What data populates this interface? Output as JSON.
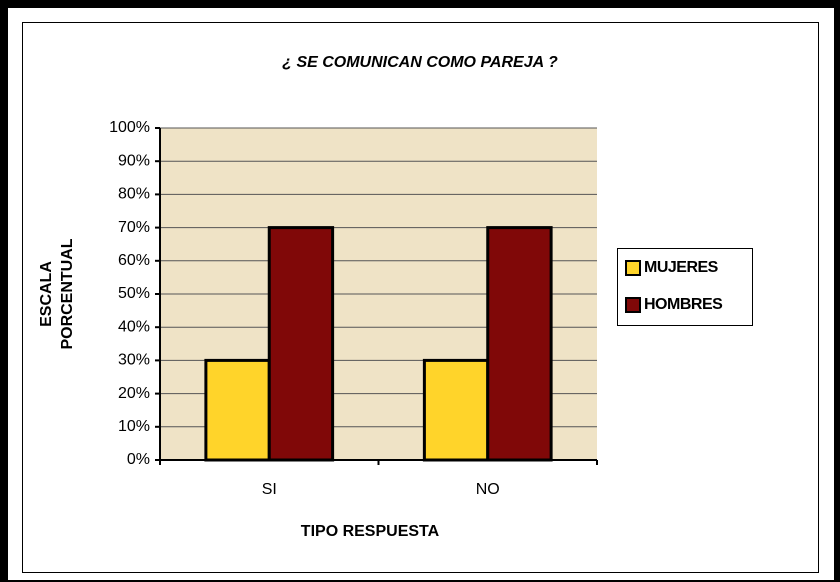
{
  "chart_data": {
    "type": "bar",
    "title": "¿ SE COMUNICAN COMO PAREJA ?",
    "xlabel": "TIPO RESPUESTA",
    "ylabel": [
      "ESCALA",
      "PORCENTUAL"
    ],
    "categories": [
      "SI",
      "NO"
    ],
    "series": [
      {
        "name": "MUJERES",
        "color": "#ffd42a",
        "values": [
          30,
          30
        ]
      },
      {
        "name": "HOMBRES",
        "color": "#800808",
        "values": [
          70,
          70
        ]
      }
    ],
    "ylim": [
      0,
      100
    ],
    "yticks": [
      {
        "value": 0,
        "label": "0%"
      },
      {
        "value": 10,
        "label": "10%"
      },
      {
        "value": 20,
        "label": "20%"
      },
      {
        "value": 30,
        "label": "30%"
      },
      {
        "value": 40,
        "label": "40%"
      },
      {
        "value": 50,
        "label": "50%"
      },
      {
        "value": 60,
        "label": "60%"
      },
      {
        "value": 70,
        "label": "70%"
      },
      {
        "value": 80,
        "label": "80%"
      },
      {
        "value": 90,
        "label": "90%"
      },
      {
        "value": 100,
        "label": "100%"
      }
    ],
    "grid": true,
    "legend": "right"
  }
}
